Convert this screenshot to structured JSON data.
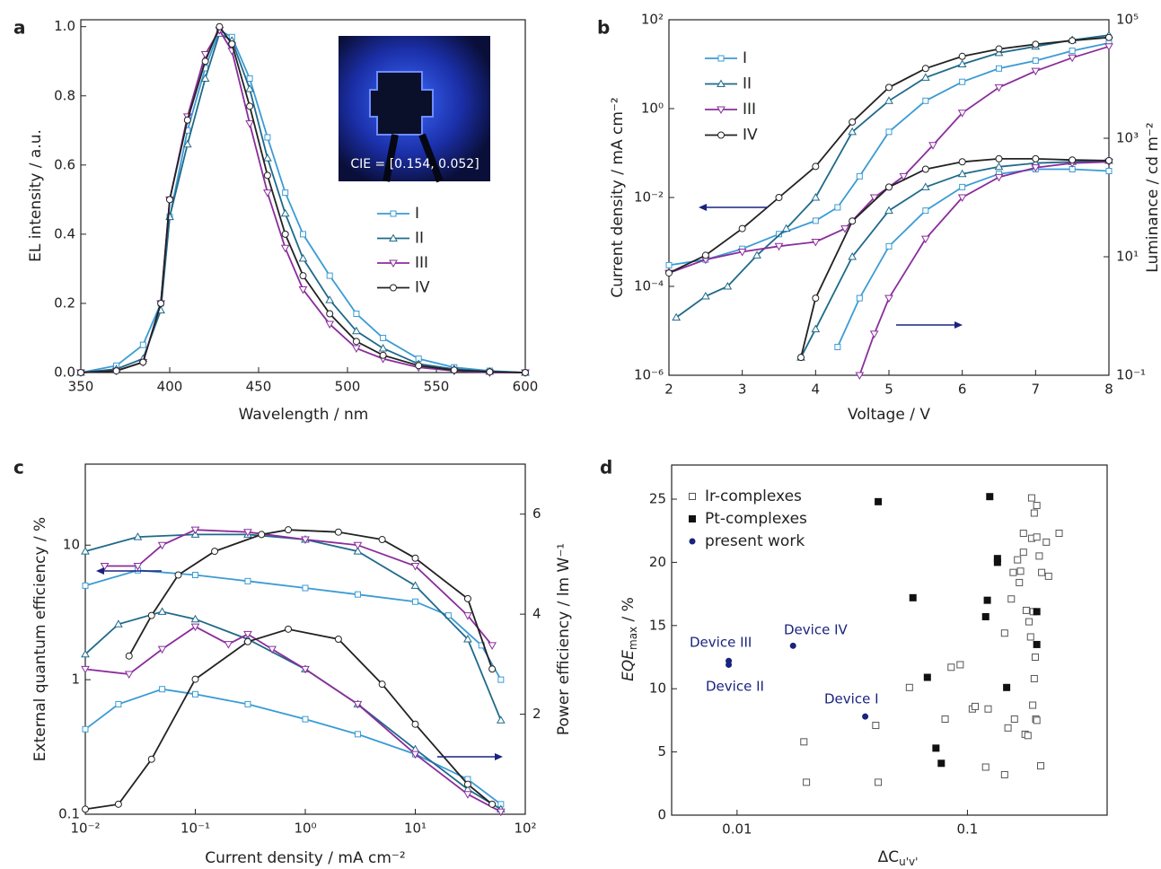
{
  "chart_data": [
    {
      "type": "line",
      "panel": "a",
      "xlabel": "Wavelength / nm",
      "ylabel": "EL intensity / a.u.",
      "annotation": "CIE = [0.154, 0.052]",
      "legend": "center right",
      "x": [
        350,
        370,
        385,
        395,
        400,
        410,
        420,
        428,
        435,
        445,
        455,
        465,
        475,
        490,
        505,
        520,
        540,
        560,
        580,
        600
      ],
      "xlim": [
        350,
        600
      ],
      "xticks": [
        350,
        400,
        450,
        500,
        550,
        600
      ],
      "ylim": [
        0,
        1.02
      ],
      "yticks": [
        {
          "value": 0,
          "label": "0.0"
        },
        {
          "value": 0.2,
          "label": "0.2"
        },
        {
          "value": 0.4,
          "label": "0.4"
        },
        {
          "value": 0.6,
          "label": "0.6"
        },
        {
          "value": 0.8,
          "label": "0.8"
        },
        {
          "value": 1,
          "label": "1.0"
        }
      ],
      "series": [
        {
          "name": "I",
          "color": "#3a9bd5",
          "marker": "square",
          "values": [
            0,
            0.02,
            0.08,
            0.2,
            0.45,
            0.7,
            0.88,
            0.99,
            0.97,
            0.85,
            0.68,
            0.52,
            0.4,
            0.28,
            0.17,
            0.1,
            0.04,
            0.015,
            0.005,
            0
          ]
        },
        {
          "name": "II",
          "color": "#1f6a8a",
          "marker": "triangle-up",
          "values": [
            0,
            0.01,
            0.04,
            0.18,
            0.45,
            0.66,
            0.85,
            0.98,
            0.96,
            0.82,
            0.62,
            0.46,
            0.33,
            0.21,
            0.12,
            0.07,
            0.025,
            0.01,
            0.003,
            0
          ]
        },
        {
          "name": "III",
          "color": "#8a2d9c",
          "marker": "triangle-down",
          "values": [
            0,
            0.005,
            0.03,
            0.2,
            0.5,
            0.74,
            0.92,
            0.99,
            0.93,
            0.72,
            0.52,
            0.36,
            0.24,
            0.14,
            0.07,
            0.04,
            0.015,
            0.005,
            0,
            0
          ]
        },
        {
          "name": "IV",
          "color": "#222222",
          "marker": "circle",
          "values": [
            0,
            0.005,
            0.03,
            0.2,
            0.5,
            0.73,
            0.9,
            1.0,
            0.95,
            0.77,
            0.57,
            0.4,
            0.28,
            0.17,
            0.09,
            0.05,
            0.02,
            0.007,
            0.002,
            0
          ]
        }
      ]
    },
    {
      "type": "line",
      "panel": "b",
      "xlabel": "Voltage / V",
      "ylabel": "Current density / mA cm⁻²",
      "y2label": "Luminance / cd m⁻²",
      "legend": "upper left",
      "xlim": [
        2,
        8
      ],
      "xticks": [
        2,
        3,
        4,
        5,
        6,
        7,
        8
      ],
      "ylog": true,
      "ylim": [
        1e-06,
        100
      ],
      "yticks": [
        {
          "value": 1e-06,
          "label": "10⁻⁶"
        },
        {
          "value": 0.0001,
          "label": "10⁻⁴"
        },
        {
          "value": 0.01,
          "label": "10⁻²"
        },
        {
          "value": 1,
          "label": "10⁰"
        },
        {
          "value": 100,
          "label": "10²"
        }
      ],
      "y2log": true,
      "y2lim": [
        0.1,
        100000
      ],
      "y2ticks": [
        {
          "value": 0.1,
          "label": "10⁻¹"
        },
        {
          "value": 10,
          "label": "10¹"
        },
        {
          "value": 1000,
          "label": "10³"
        },
        {
          "value": 100000,
          "label": "10⁵"
        }
      ],
      "series": [
        {
          "name": "I",
          "color": "#3a9bd5",
          "marker": "square",
          "x": [
            2,
            2.5,
            3,
            3.5,
            4,
            4.3,
            4.6,
            5,
            5.5,
            6,
            6.5,
            7,
            7.5,
            8
          ],
          "values": [
            0.0003,
            0.0004,
            0.0007,
            0.0015,
            0.003,
            0.006,
            0.03,
            0.3,
            1.5,
            4,
            8,
            12,
            20,
            30
          ],
          "x2": [
            4.3,
            4.6,
            5,
            5.5,
            6,
            6.5,
            7,
            7.5,
            8
          ],
          "values2": [
            0.3,
            2,
            15,
            60,
            150,
            250,
            300,
            300,
            280
          ]
        },
        {
          "name": "II",
          "color": "#1f6a8a",
          "marker": "triangle-up",
          "x": [
            2.1,
            2.5,
            2.8,
            3.2,
            3.6,
            4,
            4.5,
            5,
            5.5,
            6,
            6.5,
            7,
            7.5,
            8
          ],
          "values": [
            2e-05,
            6e-05,
            0.0001,
            0.0005,
            0.002,
            0.01,
            0.3,
            1.5,
            5,
            10,
            18,
            25,
            35,
            45
          ],
          "x2": [
            3.8,
            4,
            4.5,
            5,
            5.5,
            6,
            6.5,
            7,
            7.5,
            8
          ],
          "values2": [
            0.2,
            0.6,
            10,
            60,
            150,
            250,
            330,
            380,
            400,
            420
          ]
        },
        {
          "name": "III",
          "color": "#8a2d9c",
          "marker": "triangle-down",
          "x": [
            2,
            2.5,
            3,
            3.5,
            4,
            4.4,
            4.8,
            5.2,
            5.6,
            6,
            6.5,
            7,
            7.5,
            8
          ],
          "values": [
            0.0002,
            0.0004,
            0.0006,
            0.0008,
            0.001,
            0.002,
            0.01,
            0.03,
            0.15,
            0.8,
            3,
            7,
            14,
            25
          ],
          "x2": [
            4.6,
            4.8,
            5,
            5.5,
            6,
            6.5,
            7,
            7.5,
            8
          ],
          "values2": [
            0.1,
            0.5,
            2,
            20,
            100,
            220,
            320,
            380,
            400
          ]
        },
        {
          "name": "IV",
          "color": "#222222",
          "marker": "circle",
          "x": [
            2,
            2.5,
            3,
            3.5,
            4,
            4.5,
            5,
            5.5,
            6,
            6.5,
            7,
            7.5,
            8
          ],
          "values": [
            0.0002,
            0.0005,
            0.002,
            0.01,
            0.05,
            0.5,
            3,
            8,
            15,
            22,
            28,
            34,
            40
          ],
          "x2": [
            3.8,
            4,
            4.5,
            5,
            5.5,
            6,
            6.5,
            7,
            7.5,
            8
          ],
          "values2": [
            0.2,
            2,
            40,
            150,
            300,
            400,
            450,
            450,
            430,
            420
          ]
        }
      ]
    },
    {
      "type": "line",
      "panel": "c",
      "xlabel": "Current density / mA cm⁻²",
      "ylabel": "External quantum efficiency / %",
      "y2label": "Power efficiency / lm W⁻¹",
      "xlog": true,
      "xlim": [
        0.01,
        100
      ],
      "xticks": [
        {
          "value": 0.01,
          "label": "10⁻²"
        },
        {
          "value": 0.1,
          "label": "10⁻¹"
        },
        {
          "value": 1,
          "label": "10⁰"
        },
        {
          "value": 10,
          "label": "10¹"
        },
        {
          "value": 100,
          "label": "10²"
        }
      ],
      "ylog": true,
      "ylim": [
        0.1,
        40
      ],
      "yticks": [
        0.1,
        1,
        10
      ],
      "y2lim": [
        0,
        7
      ],
      "y2ticks": [
        2,
        4,
        6
      ],
      "series": [
        {
          "name": "I",
          "color": "#3a9bd5",
          "marker": "square",
          "x": [
            0.01,
            0.03,
            0.1,
            0.3,
            1,
            3,
            10,
            20,
            40,
            60
          ],
          "values": [
            5,
            6.5,
            6,
            5.4,
            4.8,
            4.3,
            3.8,
            3,
            1.8,
            1
          ],
          "x2": [
            0.01,
            0.02,
            0.05,
            0.1,
            0.3,
            1,
            3,
            10,
            30,
            60
          ],
          "values2": [
            1.7,
            2.2,
            2.5,
            2.4,
            2.2,
            1.9,
            1.6,
            1.2,
            0.7,
            0.2
          ]
        },
        {
          "name": "II",
          "color": "#1f6a8a",
          "marker": "triangle-up",
          "x": [
            0.01,
            0.03,
            0.1,
            0.3,
            1,
            3,
            10,
            30,
            60
          ],
          "values": [
            9,
            11.5,
            12,
            12,
            11,
            9,
            5,
            2,
            0.5
          ],
          "x2": [
            0.01,
            0.02,
            0.05,
            0.1,
            0.3,
            1,
            3,
            10,
            30,
            60
          ],
          "values2": [
            3.2,
            3.8,
            4.05,
            3.9,
            3.5,
            2.9,
            2.2,
            1.3,
            0.5,
            0.1
          ]
        },
        {
          "name": "III",
          "color": "#8a2d9c",
          "marker": "triangle-down",
          "x": [
            0.015,
            0.03,
            0.05,
            0.1,
            0.3,
            1,
            3,
            10,
            30,
            50
          ],
          "values": [
            7,
            7,
            10,
            13,
            12.5,
            11,
            10,
            7,
            3,
            1.8
          ],
          "x2": [
            0.01,
            0.025,
            0.05,
            0.1,
            0.2,
            0.3,
            0.5,
            1,
            3,
            10,
            30,
            60
          ],
          "values2": [
            2.9,
            2.8,
            3.3,
            3.75,
            3.4,
            3.6,
            3.3,
            2.9,
            2.2,
            1.2,
            0.4,
            0.05
          ]
        },
        {
          "name": "IV",
          "color": "#222222",
          "marker": "circle",
          "x": [
            0.025,
            0.04,
            0.07,
            0.15,
            0.4,
            0.7,
            2,
            5,
            10,
            30,
            50
          ],
          "values": [
            1.5,
            3,
            6,
            9,
            12,
            13,
            12.5,
            11,
            8,
            4,
            1.2
          ],
          "x2": [
            0.01,
            0.02,
            0.04,
            0.1,
            0.3,
            0.7,
            2,
            5,
            10,
            30,
            50
          ],
          "values2": [
            0.1,
            0.2,
            1.1,
            2.7,
            3.45,
            3.7,
            3.5,
            2.6,
            1.8,
            0.6,
            0.2
          ]
        }
      ]
    },
    {
      "type": "scatter",
      "panel": "d",
      "xlabel": {
        "main": "ΔC",
        "sub": "u'v'"
      },
      "ylabel": {
        "main": "EQE",
        "sub": "max",
        "unit": " / %"
      },
      "legend": "upper left",
      "xlog": true,
      "xlim": [
        0.0052,
        0.404
      ],
      "xticks": [
        0.01,
        0.1
      ],
      "ylim": [
        0,
        27.7
      ],
      "yticks": [
        0,
        5,
        10,
        15,
        20,
        25
      ],
      "annotations": [
        "Device III",
        "Device II",
        "Device IV",
        "Device I"
      ],
      "series": [
        {
          "name": "Ir-complexes",
          "color": "#555555",
          "marker": "open-square",
          "x": [
            0.0195,
            0.02,
            0.04,
            0.041,
            0.056,
            0.08,
            0.085,
            0.093,
            0.105,
            0.108,
            0.12,
            0.123,
            0.145,
            0.145,
            0.15,
            0.155,
            0.158,
            0.16,
            0.165,
            0.168,
            0.17,
            0.175,
            0.175,
            0.178,
            0.18,
            0.183,
            0.185,
            0.188,
            0.19,
            0.19,
            0.192,
            0.193,
            0.195,
            0.197,
            0.198,
            0.2,
            0.2,
            0.205,
            0.208,
            0.21,
            0.22,
            0.225,
            0.25,
            0.195,
            0.2
          ],
          "values": [
            5.8,
            2.6,
            7.1,
            2.6,
            10.1,
            7.6,
            11.7,
            11.9,
            8.4,
            8.6,
            3.8,
            8.4,
            14.4,
            3.2,
            6.9,
            17.1,
            19.2,
            7.6,
            20.2,
            18.4,
            19.3,
            20.8,
            22.3,
            6.4,
            16.2,
            6.3,
            15.3,
            14.1,
            25.1,
            21.9,
            8.7,
            16.1,
            23.9,
            12.5,
            7.6,
            22,
            24.5,
            20.5,
            3.9,
            19.2,
            21.6,
            18.9,
            22.3,
            10.8,
            7.5
          ]
        },
        {
          "name": "Pt-complexes",
          "color": "#111111",
          "marker": "filled-square",
          "x": [
            0.041,
            0.125,
            0.058,
            0.122,
            0.12,
            0.135,
            0.135,
            0.2,
            0.2,
            0.148,
            0.067,
            0.073,
            0.077
          ],
          "values": [
            24.8,
            25.2,
            17.2,
            17,
            15.7,
            20,
            20.3,
            16.1,
            13.5,
            10.1,
            10.9,
            5.3,
            4.1
          ]
        },
        {
          "name": "present work",
          "color": "#1a237e",
          "marker": "circle",
          "x": [
            0.0092,
            0.0092,
            0.0175,
            0.036
          ],
          "values": [
            12.2,
            11.9,
            13.4,
            7.8
          ]
        }
      ]
    }
  ]
}
